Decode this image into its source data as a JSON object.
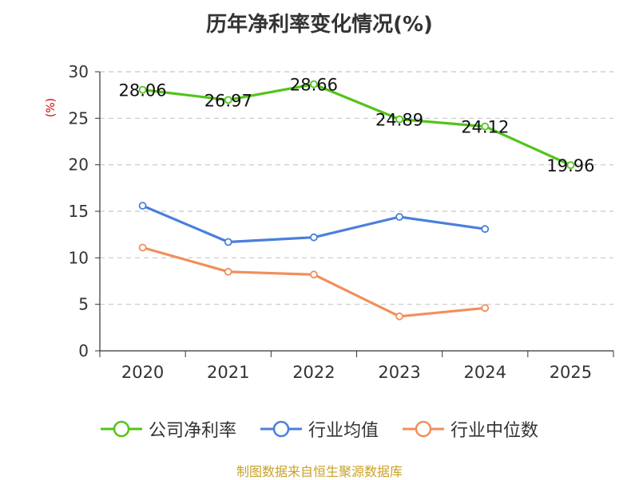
{
  "chart_data": {
    "type": "line",
    "title": "历年净利率变化情况(%)",
    "ylabel": "(%)",
    "xlabel": "",
    "categories": [
      "2020",
      "2021",
      "2022",
      "2023",
      "2024",
      "2025"
    ],
    "ylim": [
      0,
      30
    ],
    "yticks": [
      0,
      5,
      10,
      15,
      20,
      25,
      30
    ],
    "grid": true,
    "legend_position": "bottom",
    "series": [
      {
        "name": "公司净利率",
        "color": "#52c41a",
        "values": [
          28.06,
          26.97,
          28.66,
          24.89,
          24.12,
          19.96
        ],
        "labels": [
          "28.06",
          "26.97",
          "28.66",
          "24.89",
          "24.12",
          "19.96"
        ]
      },
      {
        "name": "行业均值",
        "color": "#4a7fdc",
        "values": [
          15.6,
          11.7,
          12.2,
          14.4,
          13.1,
          null
        ]
      },
      {
        "name": "行业中位数",
        "color": "#f28e5b",
        "values": [
          11.1,
          8.5,
          8.2,
          3.7,
          4.6,
          null
        ]
      }
    ]
  },
  "source": "制图数据来自恒生聚源数据库"
}
